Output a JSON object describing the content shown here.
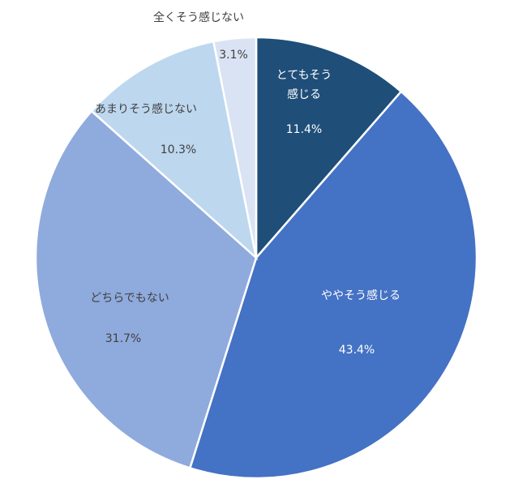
{
  "chart_data": {
    "type": "pie",
    "categories": [
      "とてもそう感じる",
      "ややそう感じる",
      "どちらでもない",
      "あまりそう感じない",
      "全くそう感じない"
    ],
    "values": [
      11.4,
      43.4,
      31.7,
      10.3,
      3.1
    ],
    "value_labels": [
      "11.4%",
      "43.4%",
      "31.7%",
      "10.3%",
      "3.1%"
    ],
    "colors": [
      "#1f4e79",
      "#4472c4",
      "#8faadc",
      "#bdd7ee",
      "#dae3f3"
    ]
  }
}
